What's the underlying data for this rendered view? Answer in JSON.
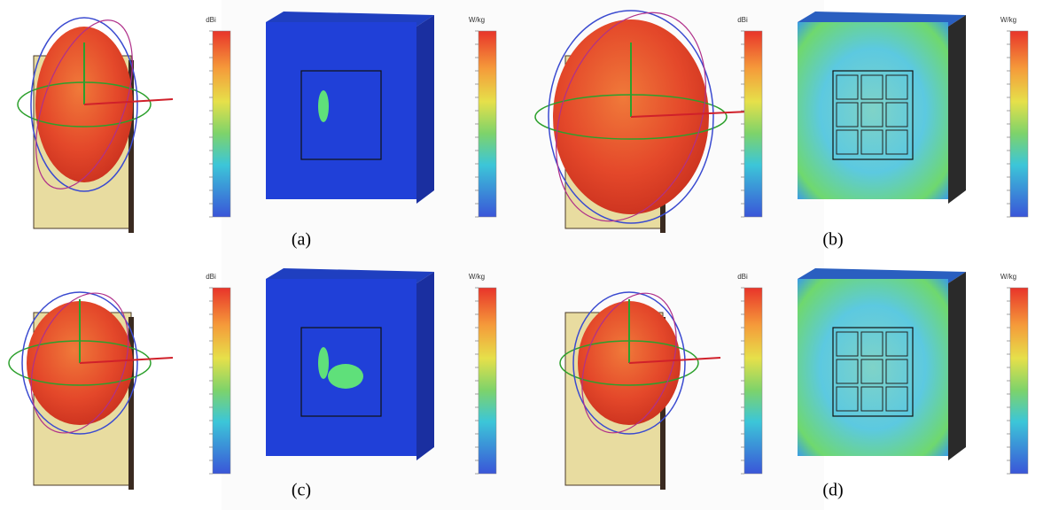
{
  "panels": [
    {
      "label": "(a)",
      "pattern_unit": "dBi",
      "field_unit": "W/kg"
    },
    {
      "label": "(b)",
      "pattern_unit": "dBi",
      "field_unit": "W/kg"
    },
    {
      "label": "(c)",
      "pattern_unit": "dBi",
      "field_unit": "W/kg"
    },
    {
      "label": "(d)",
      "pattern_unit": "dBi",
      "field_unit": "W/kg"
    }
  ]
}
